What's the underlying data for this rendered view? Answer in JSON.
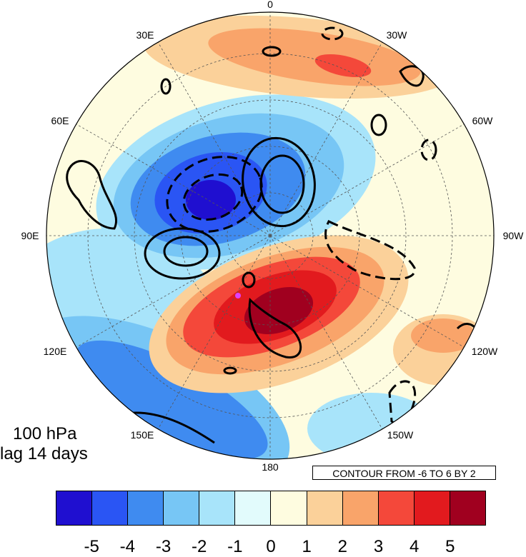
{
  "map": {
    "projection": "north polar stereographic",
    "lon_labels": [
      {
        "text": "0"
      },
      {
        "text": "30W"
      },
      {
        "text": "60W"
      },
      {
        "text": "90W"
      },
      {
        "text": "120W"
      },
      {
        "text": "150W"
      },
      {
        "text": "180"
      },
      {
        "text": "150E"
      },
      {
        "text": "120E"
      },
      {
        "text": "90E"
      },
      {
        "text": "60E"
      },
      {
        "text": "30E"
      }
    ],
    "grid": "dashed lat/lon",
    "marker_color": "#e040fb"
  },
  "panel": {
    "level": "100 hPa",
    "lag": "lag 14 days"
  },
  "contour_note": "CONTOUR FROM -6 TO 6 BY 2",
  "colorbar": {
    "colors": [
      "#1f0fd0",
      "#2a55f4",
      "#3f8bf0",
      "#77c6f5",
      "#a8e4fa",
      "#e2fbfc",
      "#fefce0",
      "#fbd19a",
      "#f9a46a",
      "#f4483a",
      "#e21a1e",
      "#a0001f"
    ],
    "labels": [
      "-5",
      "-4",
      "-3",
      "-2",
      "-1",
      "0",
      "1",
      "2",
      "3",
      "4",
      "5"
    ]
  }
}
